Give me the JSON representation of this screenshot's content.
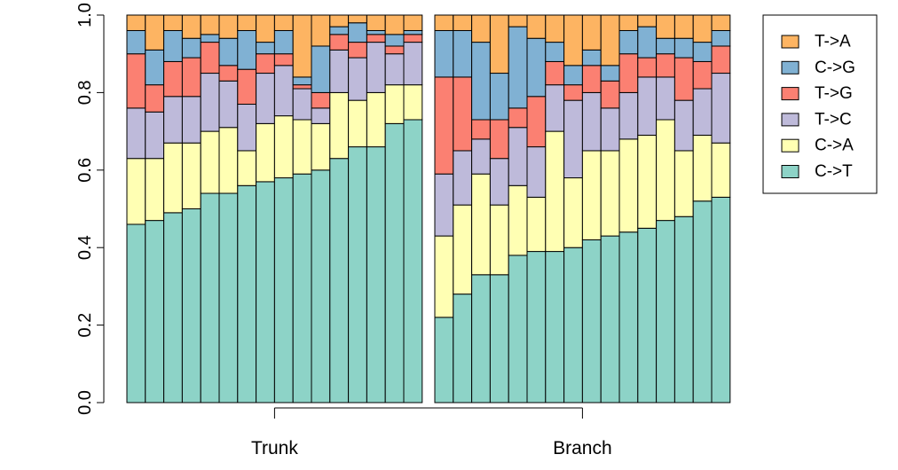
{
  "chart_data": {
    "type": "bar",
    "stacked": true,
    "ylim": [
      0,
      1
    ],
    "yticks": [
      "0.0",
      "0.2",
      "0.4",
      "0.6",
      "0.8",
      "1.0"
    ],
    "stack_order": [
      "C->T",
      "C->A",
      "T->C",
      "T->G",
      "C->G",
      "T->A"
    ],
    "legend": {
      "position": "right",
      "entries": [
        {
          "name": "T->A",
          "color": "#FDB462"
        },
        {
          "name": "C->G",
          "color": "#80B1D3"
        },
        {
          "name": "T->G",
          "color": "#FB8072"
        },
        {
          "name": "T->C",
          "color": "#BEBADA"
        },
        {
          "name": "C->A",
          "color": "#FFFFB3"
        },
        {
          "name": "C->T",
          "color": "#8DD3C7"
        }
      ]
    },
    "groups": [
      {
        "label": "Trunk",
        "bars": [
          {
            "C->T": 0.46,
            "C->A": 0.17,
            "T->C": 0.13,
            "T->G": 0.14,
            "C->G": 0.06,
            "T->A": 0.04
          },
          {
            "C->T": 0.47,
            "C->A": 0.16,
            "T->C": 0.12,
            "T->G": 0.07,
            "C->G": 0.09,
            "T->A": 0.09
          },
          {
            "C->T": 0.49,
            "C->A": 0.18,
            "T->C": 0.12,
            "T->G": 0.09,
            "C->G": 0.08,
            "T->A": 0.04
          },
          {
            "C->T": 0.5,
            "C->A": 0.17,
            "T->C": 0.12,
            "T->G": 0.1,
            "C->G": 0.05,
            "T->A": 0.06
          },
          {
            "C->T": 0.54,
            "C->A": 0.16,
            "T->C": 0.15,
            "T->G": 0.08,
            "C->G": 0.02,
            "T->A": 0.05
          },
          {
            "C->T": 0.54,
            "C->A": 0.17,
            "T->C": 0.12,
            "T->G": 0.04,
            "C->G": 0.07,
            "T->A": 0.06
          },
          {
            "C->T": 0.56,
            "C->A": 0.09,
            "T->C": 0.12,
            "T->G": 0.09,
            "C->G": 0.1,
            "T->A": 0.04
          },
          {
            "C->T": 0.57,
            "C->A": 0.15,
            "T->C": 0.13,
            "T->G": 0.05,
            "C->G": 0.03,
            "T->A": 0.07
          },
          {
            "C->T": 0.58,
            "C->A": 0.16,
            "T->C": 0.13,
            "T->G": 0.03,
            "C->G": 0.06,
            "T->A": 0.04
          },
          {
            "C->T": 0.59,
            "C->A": 0.14,
            "T->C": 0.08,
            "T->G": 0.01,
            "C->G": 0.02,
            "T->A": 0.16
          },
          {
            "C->T": 0.6,
            "C->A": 0.12,
            "T->C": 0.04,
            "T->G": 0.04,
            "C->G": 0.12,
            "T->A": 0.08
          },
          {
            "C->T": 0.63,
            "C->A": 0.17,
            "T->C": 0.11,
            "T->G": 0.04,
            "C->G": 0.02,
            "T->A": 0.03
          },
          {
            "C->T": 0.66,
            "C->A": 0.12,
            "T->C": 0.11,
            "T->G": 0.04,
            "C->G": 0.05,
            "T->A": 0.02
          },
          {
            "C->T": 0.66,
            "C->A": 0.14,
            "T->C": 0.13,
            "T->G": 0.02,
            "C->G": 0.01,
            "T->A": 0.04
          },
          {
            "C->T": 0.72,
            "C->A": 0.1,
            "T->C": 0.08,
            "T->G": 0.02,
            "C->G": 0.03,
            "T->A": 0.05
          },
          {
            "C->T": 0.73,
            "C->A": 0.09,
            "T->C": 0.11,
            "T->G": 0.02,
            "C->G": 0.01,
            "T->A": 0.04
          }
        ]
      },
      {
        "label": "Branch",
        "bars": [
          {
            "C->T": 0.22,
            "C->A": 0.21,
            "T->C": 0.16,
            "T->G": 0.25,
            "C->G": 0.12,
            "T->A": 0.04
          },
          {
            "C->T": 0.28,
            "C->A": 0.23,
            "T->C": 0.14,
            "T->G": 0.19,
            "C->G": 0.12,
            "T->A": 0.04
          },
          {
            "C->T": 0.33,
            "C->A": 0.26,
            "T->C": 0.09,
            "T->G": 0.05,
            "C->G": 0.2,
            "T->A": 0.07
          },
          {
            "C->T": 0.33,
            "C->A": 0.18,
            "T->C": 0.12,
            "T->G": 0.1,
            "C->G": 0.12,
            "T->A": 0.15
          },
          {
            "C->T": 0.38,
            "C->A": 0.18,
            "T->C": 0.15,
            "T->G": 0.05,
            "C->G": 0.21,
            "T->A": 0.03
          },
          {
            "C->T": 0.39,
            "C->A": 0.14,
            "T->C": 0.13,
            "T->G": 0.13,
            "C->G": 0.15,
            "T->A": 0.06
          },
          {
            "C->T": 0.39,
            "C->A": 0.31,
            "T->C": 0.12,
            "T->G": 0.06,
            "C->G": 0.05,
            "T->A": 0.07
          },
          {
            "C->T": 0.4,
            "C->A": 0.18,
            "T->C": 0.2,
            "T->G": 0.04,
            "C->G": 0.05,
            "T->A": 0.13
          },
          {
            "C->T": 0.42,
            "C->A": 0.23,
            "T->C": 0.15,
            "T->G": 0.07,
            "C->G": 0.04,
            "T->A": 0.09
          },
          {
            "C->T": 0.43,
            "C->A": 0.22,
            "T->C": 0.11,
            "T->G": 0.07,
            "C->G": 0.04,
            "T->A": 0.13
          },
          {
            "C->T": 0.44,
            "C->A": 0.24,
            "T->C": 0.12,
            "T->G": 0.1,
            "C->G": 0.06,
            "T->A": 0.04
          },
          {
            "C->T": 0.45,
            "C->A": 0.24,
            "T->C": 0.15,
            "T->G": 0.05,
            "C->G": 0.08,
            "T->A": 0.03
          },
          {
            "C->T": 0.47,
            "C->A": 0.26,
            "T->C": 0.11,
            "T->G": 0.06,
            "C->G": 0.04,
            "T->A": 0.06
          },
          {
            "C->T": 0.48,
            "C->A": 0.17,
            "T->C": 0.13,
            "T->G": 0.11,
            "C->G": 0.05,
            "T->A": 0.06
          },
          {
            "C->T": 0.52,
            "C->A": 0.17,
            "T->C": 0.12,
            "T->G": 0.07,
            "C->G": 0.05,
            "T->A": 0.07
          },
          {
            "C->T": 0.53,
            "C->A": 0.14,
            "T->C": 0.18,
            "T->G": 0.07,
            "C->G": 0.04,
            "T->A": 0.04
          }
        ]
      }
    ]
  }
}
